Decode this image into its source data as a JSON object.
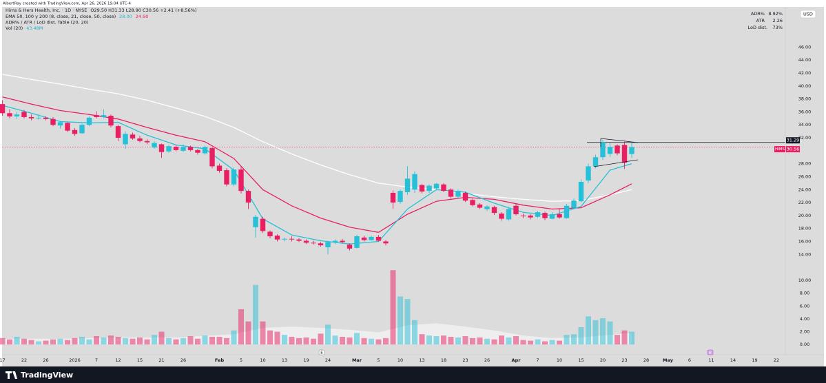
{
  "header": {
    "watermark": "AlbertRay created with TradingView.com, Apr 26, 2026 19:04 UTC-4",
    "footer_logo": "TradingView"
  },
  "chart_data": {
    "type": "candlestick",
    "title": "Hims & Hers Health, Inc. · 1D · NYSE",
    "ohlc_label": "O29.50 H31.33 L28.90 C30.56 +2.41 (+8.56%)",
    "indicators": [
      {
        "label": "EMA 50, 100 y 200 (8, close, 21, close, 50, close)",
        "values": [
          "28.00",
          "24.90"
        ],
        "colors": [
          "#1fb5cf",
          "#e91e63"
        ]
      },
      {
        "label": "ADR% / ATR / LoD dist. Table (20, 20)",
        "values": [],
        "colors": []
      },
      {
        "label": "Vol (20)",
        "values": [
          "43.48M"
        ],
        "colors": [
          "#1fb5cf"
        ]
      }
    ],
    "currency": "USD",
    "table": [
      [
        "ADR%",
        "8.92%"
      ],
      [
        "ATR",
        "2.26"
      ],
      [
        "LoD dist.",
        "73%"
      ]
    ],
    "up_color": "#26c0d8",
    "down_color": "#e91e63",
    "grid": false,
    "open": [
      37.2,
      35.8,
      35.3,
      36.0,
      35.2,
      35.0,
      35.1,
      34.9,
      33.9,
      34.3,
      33.2,
      32.7,
      34.0,
      35.5,
      35.2,
      35.4,
      33.8,
      31.0,
      32.5,
      31.9,
      31.5,
      30.5,
      31.0,
      29.9,
      30.6,
      30.0,
      30.6,
      30.1,
      29.6,
      30.4,
      27.7,
      27.0,
      24.8,
      27.1,
      23.8,
      18.2,
      19.5,
      17.5,
      16.9,
      16.3,
      16.4,
      16.3,
      16.1,
      15.8,
      15.7,
      15.1,
      15.9,
      16.1,
      15.5,
      15.0,
      16.6,
      16.2,
      16.7,
      16.0,
      23.5,
      22.1,
      23.6,
      24.0,
      24.7,
      23.8,
      24.2,
      24.8,
      24.0,
      22.9,
      23.5,
      22.4,
      21.7,
      21.0,
      21.3,
      20.3,
      19.4,
      21.5,
      20.0,
      20.0,
      19.8,
      20.4,
      19.5,
      20.2,
      19.6,
      21.2,
      22.2,
      25.4,
      27.6,
      29.0,
      29.5,
      30.8,
      30.9,
      29.5
    ],
    "high": [
      37.8,
      36.4,
      36.0,
      36.3,
      35.6,
      35.4,
      35.3,
      35.2,
      34.6,
      34.4,
      33.5,
      34.2,
      35.3,
      36.1,
      36.4,
      35.6,
      34.0,
      33.0,
      32.8,
      32.3,
      31.8,
      31.5,
      31.1,
      30.9,
      30.9,
      31.0,
      30.8,
      30.3,
      30.8,
      30.6,
      28.0,
      27.3,
      27.4,
      27.6,
      24.0,
      20.1,
      19.8,
      17.7,
      17.1,
      16.6,
      16.8,
      16.5,
      16.3,
      16.1,
      15.9,
      16.1,
      16.3,
      16.4,
      15.7,
      17.0,
      16.9,
      16.9,
      17.0,
      16.2,
      23.9,
      24.0,
      27.6,
      26.8,
      24.9,
      24.8,
      25.0,
      25.0,
      24.2,
      24.0,
      23.7,
      22.6,
      21.9,
      21.6,
      21.5,
      20.5,
      21.3,
      21.8,
      20.3,
      20.2,
      20.7,
      20.6,
      20.5,
      21.0,
      21.8,
      22.6,
      25.6,
      28.0,
      29.4,
      31.7,
      31.2,
      31.0,
      31.4,
      31.33
    ],
    "low": [
      35.4,
      35.0,
      34.9,
      35.0,
      34.7,
      34.8,
      34.7,
      33.8,
      33.4,
      32.9,
      32.3,
      32.6,
      33.8,
      35.0,
      35.0,
      33.6,
      31.5,
      30.3,
      31.7,
      31.3,
      31.0,
      30.3,
      28.9,
      29.7,
      29.9,
      29.8,
      29.9,
      29.4,
      29.4,
      27.3,
      26.6,
      24.5,
      24.5,
      23.4,
      21.0,
      16.6,
      17.3,
      16.5,
      16.0,
      16.0,
      16.0,
      15.9,
      15.6,
      15.5,
      15.2,
      14.0,
      15.6,
      15.7,
      14.6,
      14.9,
      16.0,
      16.1,
      16.0,
      15.4,
      21.0,
      21.8,
      23.2,
      23.5,
      23.4,
      23.5,
      23.9,
      23.6,
      22.6,
      22.7,
      22.1,
      21.4,
      21.0,
      20.7,
      20.1,
      19.2,
      19.2,
      20.0,
      19.6,
      19.4,
      19.6,
      19.3,
      19.4,
      19.5,
      19.5,
      21.0,
      22.0,
      25.0,
      27.3,
      28.6,
      29.0,
      29.3,
      27.2,
      28.9
    ],
    "close": [
      35.8,
      35.3,
      35.6,
      35.2,
      35.0,
      35.1,
      34.9,
      34.0,
      34.4,
      33.1,
      32.6,
      34.0,
      35.1,
      35.2,
      35.5,
      33.9,
      32.0,
      32.6,
      31.9,
      31.5,
      31.3,
      31.2,
      29.8,
      30.7,
      30.1,
      30.6,
      30.1,
      29.7,
      30.6,
      27.6,
      26.9,
      24.8,
      27.1,
      23.8,
      22.0,
      19.8,
      17.6,
      16.8,
      16.3,
      16.4,
      16.3,
      16.1,
      15.8,
      15.7,
      15.4,
      15.9,
      16.1,
      15.9,
      14.9,
      16.8,
      16.2,
      16.7,
      16.1,
      15.7,
      22.0,
      23.8,
      25.7,
      26.4,
      23.7,
      24.6,
      24.9,
      23.8,
      22.9,
      23.8,
      22.3,
      21.6,
      21.2,
      21.4,
      20.4,
      19.5,
      21.0,
      20.2,
      19.9,
      19.7,
      20.5,
      19.6,
      20.2,
      19.7,
      21.5,
      22.3,
      25.2,
      27.6,
      29.0,
      31.3,
      30.6,
      29.6,
      28.15,
      30.56
    ],
    "volume": [
      1.0,
      0.8,
      1.2,
      0.9,
      0.7,
      0.5,
      0.6,
      0.8,
      0.9,
      0.7,
      1.0,
      1.2,
      0.8,
      1.3,
      1.1,
      1.4,
      1.2,
      1.0,
      0.9,
      1.1,
      0.8,
      1.5,
      2.0,
      1.0,
      0.8,
      1.0,
      1.3,
      0.9,
      1.4,
      1.2,
      1.2,
      1.0,
      2.2,
      5.5,
      3.6,
      9.3,
      3.6,
      2.2,
      2.0,
      1.5,
      1.2,
      1.0,
      1.1,
      0.9,
      1.7,
      3.1,
      1.4,
      1.2,
      1.1,
      1.8,
      1.0,
      0.9,
      0.8,
      1.0,
      11.6,
      7.5,
      7.1,
      3.8,
      1.6,
      1.4,
      1.3,
      1.4,
      1.2,
      1.1,
      1.3,
      1.0,
      1.1,
      0.9,
      0.8,
      1.4,
      1.1,
      1.3,
      0.7,
      0.6,
      0.8,
      0.5,
      0.7,
      0.6,
      1.5,
      1.6,
      2.7,
      4.4,
      3.8,
      4.1,
      3.6,
      1.5,
      2.2,
      2.0
    ],
    "volume_axis": "y2",
    "volume_ma": {
      "color": "#f4f4f4",
      "x": [
        0,
        8,
        16,
        24,
        32,
        36,
        40,
        44,
        48,
        52,
        56,
        60,
        64,
        68,
        72,
        76,
        80,
        84,
        87
      ],
      "values": [
        0.9,
        0.9,
        1.1,
        1.1,
        1.6,
        2.6,
        2.8,
        2.6,
        2.3,
        1.9,
        3.0,
        3.3,
        2.8,
        2.2,
        1.4,
        1.0,
        1.1,
        1.5,
        1.8
      ]
    },
    "lines": [
      {
        "color": "#ffffff",
        "x": [
          0,
          4,
          8,
          12,
          16,
          20,
          24,
          28,
          32,
          36,
          40,
          44,
          48,
          52,
          56,
          60,
          64,
          68,
          72,
          76,
          80,
          84,
          87
        ],
        "values": [
          41.8,
          41.0,
          40.3,
          39.5,
          38.8,
          37.8,
          36.6,
          35.3,
          33.6,
          31.4,
          29.5,
          27.8,
          26.3,
          25.0,
          24.4,
          24.0,
          23.4,
          22.9,
          22.5,
          22.2,
          22.3,
          23.2,
          24.0
        ]
      },
      {
        "color": "#e91e63",
        "x": [
          0,
          4,
          8,
          12,
          16,
          20,
          24,
          28,
          32,
          36,
          40,
          44,
          48,
          52,
          56,
          60,
          64,
          68,
          72,
          76,
          80,
          84,
          87
        ],
        "values": [
          38.3,
          37.2,
          36.2,
          35.6,
          34.9,
          33.6,
          32.4,
          31.4,
          28.8,
          24.0,
          21.5,
          19.6,
          18.2,
          17.4,
          20.2,
          22.2,
          22.8,
          22.5,
          21.6,
          21.0,
          21.2,
          23.2,
          24.9
        ]
      },
      {
        "color": "#26c0d8",
        "x": [
          0,
          4,
          8,
          12,
          16,
          20,
          24,
          28,
          32,
          36,
          40,
          44,
          48,
          52,
          56,
          60,
          64,
          68,
          72,
          76,
          80,
          84,
          87
        ],
        "values": [
          37.0,
          35.8,
          34.5,
          34.3,
          34.4,
          32.4,
          30.9,
          30.3,
          27.0,
          19.5,
          17.0,
          16.1,
          15.6,
          16.0,
          21.0,
          24.0,
          23.6,
          21.9,
          20.5,
          20.0,
          21.4,
          27.0,
          28.0
        ]
      }
    ],
    "price_lines": [
      {
        "value": 31.29,
        "label": 31.29,
        "color": "#131722",
        "style": "solid"
      },
      {
        "value": 30.56,
        "label": 30.56,
        "color": "#e91e63",
        "style": "dotted",
        "name": "HIMS"
      }
    ],
    "events": [
      {
        "label": "E"
      },
      {
        "label": "E"
      }
    ],
    "xlim": [
      0,
      108
    ],
    "xticks": [
      {
        "value": 0,
        "label": "17"
      },
      {
        "value": 3,
        "label": "22"
      },
      {
        "value": 6,
        "label": "26"
      },
      {
        "value": 10,
        "label": "2026"
      },
      {
        "value": 13,
        "label": "7"
      },
      {
        "value": 16,
        "label": "12"
      },
      {
        "value": 19,
        "label": "15"
      },
      {
        "value": 22,
        "label": "21"
      },
      {
        "value": 25,
        "label": "26"
      },
      {
        "value": 30,
        "label": "Feb"
      },
      {
        "value": 33,
        "label": "5"
      },
      {
        "value": 36,
        "label": "10"
      },
      {
        "value": 39,
        "label": "13"
      },
      {
        "value": 42,
        "label": "19"
      },
      {
        "value": 45,
        "label": "24"
      },
      {
        "value": 49,
        "label": "Mar"
      },
      {
        "value": 52,
        "label": "5"
      },
      {
        "value": 55,
        "label": "10"
      },
      {
        "value": 58,
        "label": "13"
      },
      {
        "value": 61,
        "label": "18"
      },
      {
        "value": 64,
        "label": "23"
      },
      {
        "value": 67,
        "label": "26"
      },
      {
        "value": 71,
        "label": "Apr"
      },
      {
        "value": 74,
        "label": "7"
      },
      {
        "value": 77,
        "label": "10"
      },
      {
        "value": 80,
        "label": "15"
      },
      {
        "value": 83,
        "label": "20"
      },
      {
        "value": 86,
        "label": "23"
      },
      {
        "value": 89,
        "label": "28"
      },
      {
        "value": 92,
        "label": "May"
      },
      {
        "value": 95,
        "label": "6"
      },
      {
        "value": 98,
        "label": "11"
      },
      {
        "value": 101,
        "label": "14"
      },
      {
        "value": 104,
        "label": "19"
      },
      {
        "value": 107,
        "label": "22"
      }
    ],
    "ylim": [
      -1.5,
      52
    ],
    "yticks": [
      {
        "value": 14,
        "label": "14.00"
      },
      {
        "value": 16,
        "label": "16.00"
      },
      {
        "value": 18,
        "label": "18.00"
      },
      {
        "value": 20,
        "label": "20.00"
      },
      {
        "value": 22,
        "label": "22.00"
      },
      {
        "value": 24,
        "label": "24.00"
      },
      {
        "value": 26,
        "label": "26.00"
      },
      {
        "value": 28,
        "label": "28.00"
      },
      {
        "value": 32,
        "label": "32.00"
      },
      {
        "value": 34,
        "label": "34.00"
      },
      {
        "value": 36,
        "label": "36.00"
      },
      {
        "value": 38,
        "label": "38.00"
      },
      {
        "value": 40,
        "label": "40.00"
      },
      {
        "value": 42,
        "label": "42.00"
      },
      {
        "value": 44,
        "label": "44.00"
      },
      {
        "value": 46,
        "label": "46.00"
      }
    ],
    "y2lim": [
      -1.6,
      52.5
    ],
    "y2ticks": [
      {
        "value": 0,
        "label": "0.00"
      },
      {
        "value": 2,
        "label": "2.00"
      },
      {
        "value": 4,
        "label": "4.00"
      },
      {
        "value": 6,
        "label": "6.00"
      },
      {
        "value": 8,
        "label": "8.00"
      },
      {
        "value": 10,
        "label": "10.00"
      }
    ]
  }
}
